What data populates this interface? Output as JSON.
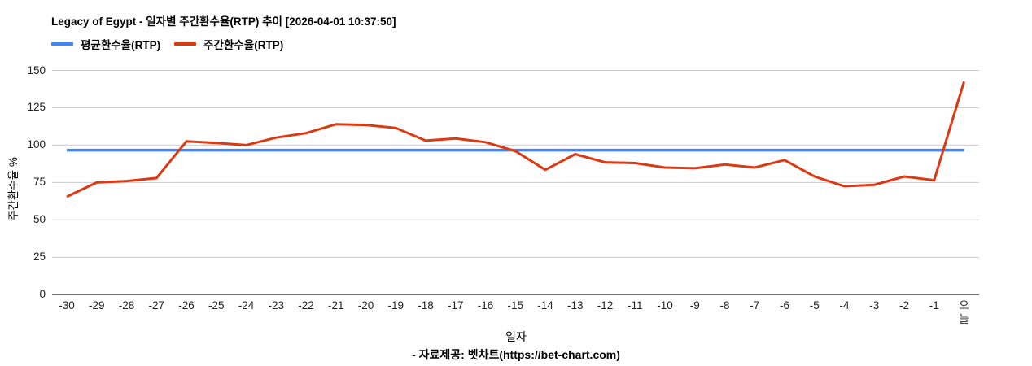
{
  "title": "Legacy of Egypt - 일자별 주간환수율(RTP) 추이 [2026-04-01 10:37:50]",
  "legend": [
    {
      "label": "평균환수율(RTP)"
    },
    {
      "label": "주간환수율(RTP)"
    }
  ],
  "footer": "- 자료제공: 벳차트(https://bet-chart.com)",
  "colors": {
    "average_line": "#4285f4",
    "weekly_line": "#dc3912",
    "gridline": "#cccccc",
    "axis_line": "#424242",
    "tick_text": "#222222"
  },
  "chart_data": {
    "type": "line",
    "title": "Legacy of Egypt - 일자별 주간환수율(RTP) 추이 [2026-04-01 10:37:50]",
    "xlabel": "일자",
    "ylabel": "주간환수율 %",
    "ylim": [
      0,
      150
    ],
    "yticks": [
      0,
      25,
      50,
      75,
      100,
      125,
      150
    ],
    "grid": true,
    "legend_position": "top-left",
    "categories": [
      "-30",
      "-29",
      "-28",
      "-27",
      "-26",
      "-25",
      "-24",
      "-23",
      "-22",
      "-21",
      "-20",
      "-19",
      "-18",
      "-17",
      "-16",
      "-15",
      "-14",
      "-13",
      "-12",
      "-11",
      "-10",
      "-9",
      "-8",
      "-7",
      "-6",
      "-5",
      "-4",
      "-3",
      "-2",
      "-1",
      "오늘"
    ],
    "series": [
      {
        "name": "평균환수율(RTP)",
        "color": "#4285f4",
        "style": "constant",
        "value": 96.6
      },
      {
        "name": "주간환수율(RTP)",
        "color": "#dc3912",
        "values": [
          65.5,
          75,
          76,
          78,
          102.5,
          101.5,
          100,
          105,
          108,
          114,
          113.5,
          111.5,
          103,
          104.5,
          102,
          96,
          83.5,
          94,
          88.5,
          88,
          85,
          84.5,
          87,
          85,
          90,
          79,
          72.5,
          73.5,
          79,
          76.5,
          142.5
        ]
      }
    ]
  }
}
